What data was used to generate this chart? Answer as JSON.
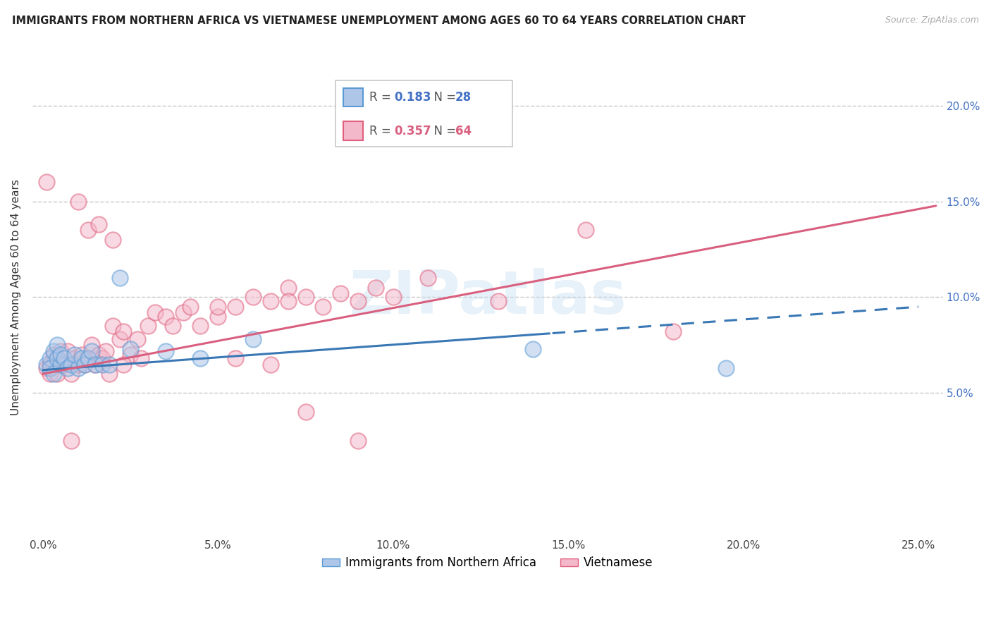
{
  "title": "IMMIGRANTS FROM NORTHERN AFRICA VS VIETNAMESE UNEMPLOYMENT AMONG AGES 60 TO 64 YEARS CORRELATION CHART",
  "source": "Source: ZipAtlas.com",
  "ylabel": "Unemployment Among Ages 60 to 64 years",
  "xlim": [
    -0.003,
    0.257
  ],
  "ylim": [
    -0.025,
    0.225
  ],
  "xticks": [
    0.0,
    0.05,
    0.1,
    0.15,
    0.2,
    0.25
  ],
  "yticks": [
    0.05,
    0.1,
    0.15,
    0.2
  ],
  "ytick_labels_right": [
    "5.0%",
    "10.0%",
    "15.0%",
    "20.0%"
  ],
  "xtick_labels": [
    "0.0%",
    "5.0%",
    "10.0%",
    "15.0%",
    "20.0%",
    "25.0%"
  ],
  "color_blue_fill": "#aec6e8",
  "color_blue_edge": "#5b9bd5",
  "color_pink_fill": "#f4b8cb",
  "color_pink_edge": "#e0607e",
  "color_line_blue": "#3a78b5",
  "color_line_pink": "#d95f7f",
  "color_rvalue_blue": "#4472c4",
  "color_rvalue_pink": "#d95f7f",
  "watermark": "ZIPatlas",
  "R_blue": "0.183",
  "N_blue": "28",
  "R_pink": "0.357",
  "N_pink": "64",
  "blue_x": [
    0.001,
    0.002,
    0.002,
    0.003,
    0.003,
    0.004,
    0.004,
    0.005,
    0.005,
    0.006,
    0.007,
    0.008,
    0.009,
    0.01,
    0.011,
    0.012,
    0.013,
    0.014,
    0.015,
    0.017,
    0.019,
    0.022,
    0.025,
    0.035,
    0.045,
    0.06,
    0.14,
    0.195
  ],
  "blue_y": [
    0.065,
    0.068,
    0.063,
    0.06,
    0.072,
    0.068,
    0.075,
    0.065,
    0.07,
    0.068,
    0.063,
    0.065,
    0.07,
    0.063,
    0.068,
    0.065,
    0.068,
    0.072,
    0.065,
    0.065,
    0.065,
    0.11,
    0.073,
    0.072,
    0.068,
    0.078,
    0.073,
    0.063
  ],
  "pink_x": [
    0.001,
    0.001,
    0.002,
    0.002,
    0.003,
    0.003,
    0.004,
    0.004,
    0.005,
    0.005,
    0.006,
    0.007,
    0.008,
    0.009,
    0.01,
    0.01,
    0.011,
    0.012,
    0.013,
    0.014,
    0.015,
    0.016,
    0.017,
    0.018,
    0.019,
    0.02,
    0.022,
    0.023,
    0.025,
    0.027,
    0.028,
    0.03,
    0.032,
    0.035,
    0.037,
    0.04,
    0.042,
    0.045,
    0.05,
    0.055,
    0.06,
    0.065,
    0.07,
    0.075,
    0.08,
    0.085,
    0.09,
    0.095,
    0.1,
    0.11,
    0.13,
    0.155,
    0.18,
    0.05,
    0.07,
    0.09,
    0.065,
    0.075,
    0.055,
    0.013,
    0.016,
    0.02,
    0.023,
    0.008
  ],
  "pink_y": [
    0.063,
    0.16,
    0.06,
    0.065,
    0.065,
    0.07,
    0.06,
    0.068,
    0.065,
    0.072,
    0.065,
    0.072,
    0.06,
    0.068,
    0.065,
    0.15,
    0.07,
    0.065,
    0.068,
    0.075,
    0.065,
    0.07,
    0.068,
    0.072,
    0.06,
    0.085,
    0.078,
    0.082,
    0.07,
    0.078,
    0.068,
    0.085,
    0.092,
    0.09,
    0.085,
    0.092,
    0.095,
    0.085,
    0.09,
    0.095,
    0.1,
    0.098,
    0.105,
    0.1,
    0.095,
    0.102,
    0.098,
    0.105,
    0.1,
    0.11,
    0.098,
    0.135,
    0.082,
    0.095,
    0.098,
    0.025,
    0.065,
    0.04,
    0.068,
    0.135,
    0.138,
    0.13,
    0.065,
    0.025
  ]
}
